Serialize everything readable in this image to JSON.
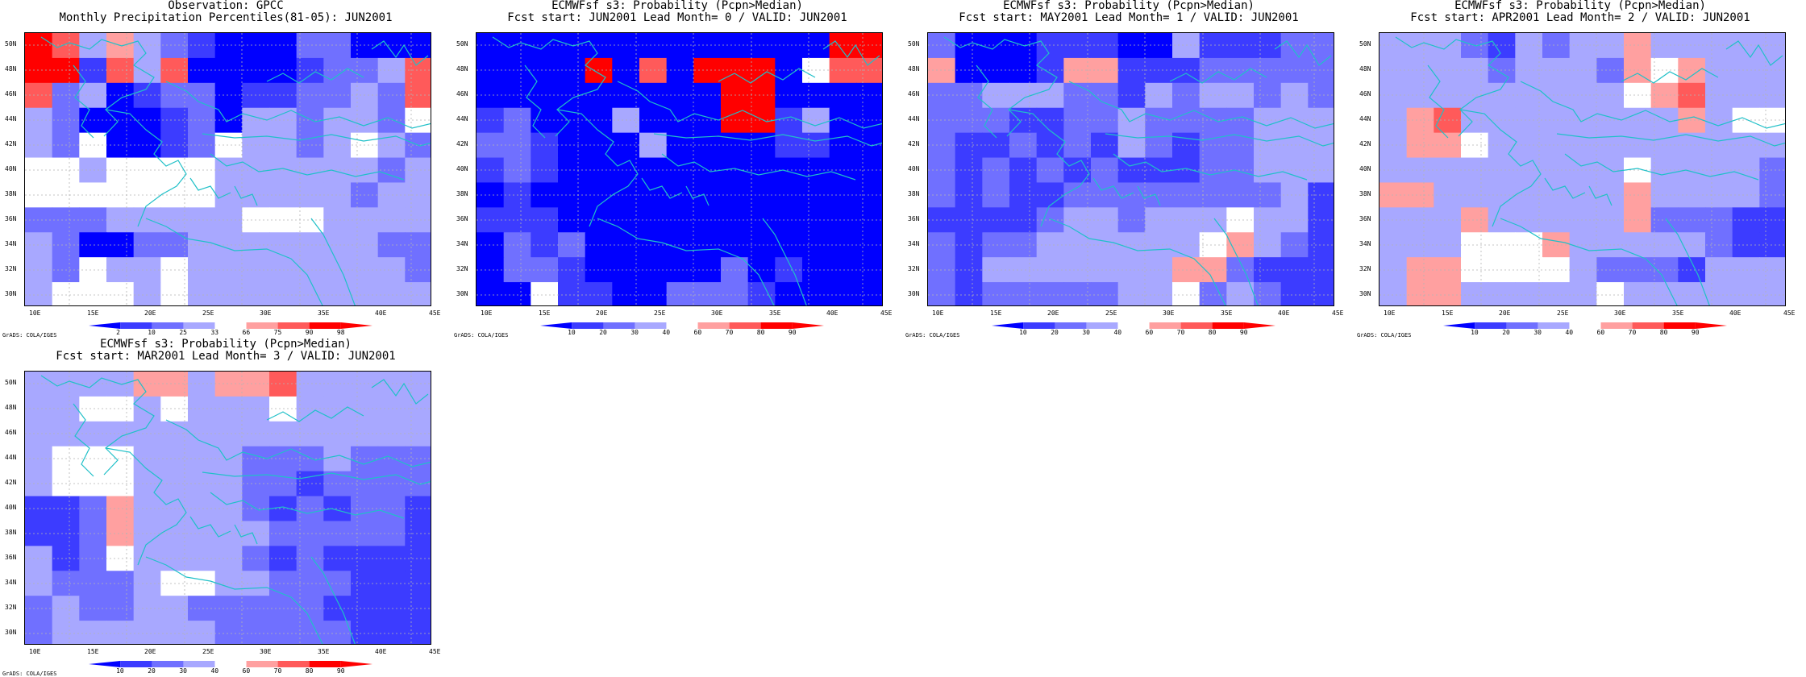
{
  "panels": [
    {
      "id": "obs",
      "title_line1": "Observation: GPCC",
      "title_line2": "Monthly Precipitation Percentiles(81-05): JUN2001",
      "colorbar_labels": [
        "2",
        "10",
        "25",
        "33",
        "66",
        "75",
        "90",
        "98"
      ],
      "grid_levels": [
        [
          7,
          6,
          3,
          5,
          3,
          2,
          1,
          0,
          0,
          0,
          2,
          2,
          0,
          0,
          0
        ],
        [
          7,
          7,
          1,
          6,
          3,
          6,
          0,
          0,
          0,
          0,
          1,
          2,
          2,
          3,
          6
        ],
        [
          6,
          2,
          3,
          0,
          1,
          2,
          2,
          0,
          1,
          1,
          2,
          2,
          3,
          2,
          6
        ],
        [
          3,
          2,
          0,
          0,
          0,
          1,
          2,
          0,
          3,
          3,
          2,
          3,
          3,
          2,
          4
        ],
        [
          3,
          2,
          4,
          0,
          0,
          1,
          2,
          4,
          3,
          3,
          2,
          3,
          4,
          3,
          2
        ],
        [
          4,
          4,
          3,
          4,
          4,
          4,
          4,
          3,
          3,
          3,
          3,
          3,
          3,
          2,
          3
        ],
        [
          4,
          4,
          4,
          4,
          4,
          4,
          4,
          3,
          3,
          3,
          3,
          3,
          2,
          3,
          3
        ],
        [
          2,
          2,
          2,
          3,
          3,
          3,
          3,
          3,
          4,
          4,
          4,
          3,
          3,
          3,
          3
        ],
        [
          3,
          2,
          0,
          0,
          2,
          2,
          3,
          3,
          3,
          3,
          3,
          3,
          3,
          2,
          2
        ],
        [
          3,
          2,
          4,
          3,
          3,
          4,
          3,
          3,
          3,
          3,
          3,
          3,
          3,
          3,
          2
        ],
        [
          3,
          4,
          4,
          4,
          3,
          4,
          3,
          3,
          3,
          3,
          3,
          3,
          3,
          3,
          3
        ]
      ]
    },
    {
      "id": "lead0",
      "title_line1": "ECMWFsf s3: Probability (Pcpn>Median)",
      "title_line2": "Fcst start: JUN2001   Lead Month= 0 / VALID: JUN2001",
      "colorbar_labels": [
        "10",
        "20",
        "30",
        "40",
        "60",
        "70",
        "80",
        "90"
      ],
      "grid_levels": [
        [
          0,
          0,
          0,
          0,
          0,
          0,
          0,
          0,
          0,
          0,
          0,
          0,
          0,
          7,
          7
        ],
        [
          0,
          0,
          0,
          0,
          7,
          0,
          6,
          0,
          7,
          7,
          7,
          0,
          4,
          6,
          6
        ],
        [
          0,
          0,
          0,
          0,
          0,
          0,
          0,
          0,
          0,
          7,
          7,
          0,
          0,
          0,
          0
        ],
        [
          1,
          2,
          0,
          0,
          0,
          3,
          0,
          0,
          0,
          7,
          7,
          1,
          3,
          0,
          0
        ],
        [
          2,
          2,
          1,
          0,
          0,
          0,
          3,
          0,
          0,
          0,
          0,
          1,
          1,
          0,
          0
        ],
        [
          1,
          2,
          1,
          0,
          0,
          0,
          0,
          0,
          0,
          0,
          0,
          0,
          0,
          0,
          0
        ],
        [
          0,
          1,
          0,
          0,
          0,
          0,
          0,
          0,
          0,
          0,
          0,
          0,
          0,
          0,
          0
        ],
        [
          1,
          1,
          1,
          0,
          0,
          0,
          0,
          0,
          0,
          0,
          0,
          0,
          0,
          0,
          0
        ],
        [
          0,
          2,
          1,
          2,
          0,
          0,
          0,
          0,
          0,
          0,
          0,
          0,
          0,
          0,
          0
        ],
        [
          0,
          2,
          2,
          1,
          0,
          0,
          0,
          0,
          0,
          2,
          0,
          1,
          0,
          0,
          0
        ],
        [
          0,
          0,
          4,
          1,
          1,
          0,
          0,
          2,
          2,
          2,
          1,
          0,
          0,
          0,
          0
        ]
      ]
    },
    {
      "id": "lead1",
      "title_line1": "ECMWFsf s3: Probability (Pcpn>Median)",
      "title_line2": "Fcst start: MAY2001   Lead Month= 1 / VALID: JUN2001",
      "colorbar_labels": [
        "10",
        "20",
        "30",
        "40",
        "60",
        "70",
        "80",
        "90"
      ],
      "grid_levels": [
        [
          2,
          0,
          0,
          0,
          1,
          1,
          1,
          0,
          0,
          3,
          1,
          1,
          1,
          2,
          2
        ],
        [
          5,
          0,
          0,
          0,
          1,
          5,
          5,
          1,
          1,
          1,
          2,
          2,
          2,
          2,
          2
        ],
        [
          2,
          2,
          3,
          3,
          3,
          2,
          2,
          1,
          3,
          2,
          3,
          3,
          2,
          3,
          2
        ],
        [
          2,
          2,
          2,
          1,
          1,
          2,
          2,
          3,
          2,
          2,
          2,
          2,
          3,
          3,
          3
        ],
        [
          2,
          1,
          1,
          2,
          1,
          2,
          1,
          3,
          2,
          1,
          2,
          2,
          3,
          3,
          3
        ],
        [
          2,
          1,
          2,
          1,
          2,
          1,
          2,
          1,
          1,
          1,
          2,
          2,
          3,
          3,
          3
        ],
        [
          2,
          1,
          2,
          1,
          1,
          2,
          2,
          2,
          2,
          2,
          2,
          2,
          2,
          3,
          1
        ],
        [
          1,
          1,
          1,
          1,
          2,
          3,
          3,
          2,
          3,
          3,
          3,
          4,
          3,
          3,
          1
        ],
        [
          2,
          1,
          2,
          2,
          3,
          3,
          3,
          3,
          3,
          3,
          4,
          5,
          3,
          2,
          1
        ],
        [
          2,
          1,
          3,
          3,
          3,
          3,
          3,
          3,
          3,
          5,
          5,
          2,
          1,
          1,
          1
        ],
        [
          2,
          1,
          2,
          2,
          2,
          2,
          2,
          3,
          3,
          4,
          2,
          3,
          2,
          1,
          1
        ]
      ]
    },
    {
      "id": "lead2",
      "title_line1": "ECMWFsf s3: Probability (Pcpn>Median)",
      "title_line2": "Fcst start: APR2001   Lead Month= 2 / VALID: JUN2001",
      "colorbar_labels": [
        "10",
        "20",
        "30",
        "40",
        "60",
        "70",
        "80",
        "90"
      ],
      "grid_levels": [
        [
          3,
          3,
          3,
          2,
          1,
          3,
          2,
          3,
          3,
          5,
          3,
          3,
          3,
          3,
          3
        ],
        [
          3,
          3,
          3,
          3,
          2,
          3,
          3,
          3,
          2,
          5,
          4,
          5,
          3,
          3,
          3
        ],
        [
          3,
          3,
          3,
          3,
          3,
          3,
          3,
          3,
          3,
          4,
          5,
          6,
          3,
          3,
          3
        ],
        [
          3,
          5,
          6,
          3,
          3,
          3,
          3,
          3,
          3,
          3,
          3,
          5,
          3,
          4,
          4
        ],
        [
          3,
          5,
          5,
          4,
          3,
          3,
          3,
          3,
          3,
          3,
          3,
          3,
          3,
          3,
          3
        ],
        [
          3,
          3,
          3,
          3,
          3,
          3,
          3,
          3,
          3,
          4,
          3,
          3,
          3,
          3,
          2
        ],
        [
          5,
          5,
          3,
          3,
          3,
          3,
          3,
          3,
          3,
          5,
          3,
          3,
          3,
          3,
          2
        ],
        [
          3,
          3,
          3,
          5,
          3,
          3,
          3,
          3,
          3,
          5,
          2,
          2,
          2,
          1,
          1
        ],
        [
          3,
          3,
          3,
          4,
          4,
          4,
          5,
          3,
          3,
          3,
          3,
          3,
          2,
          1,
          1
        ],
        [
          3,
          5,
          5,
          4,
          4,
          4,
          4,
          3,
          2,
          2,
          2,
          1,
          3,
          3,
          3
        ],
        [
          3,
          5,
          5,
          3,
          3,
          3,
          3,
          3,
          4,
          3,
          3,
          3,
          3,
          3,
          3
        ]
      ]
    },
    {
      "id": "lead3",
      "title_line1": "ECMWFsf s3: Probability (Pcpn>Median)",
      "title_line2": "Fcst start: MAR2001   Lead Month= 3 / VALID: JUN2001",
      "colorbar_labels": [
        "10",
        "20",
        "30",
        "40",
        "60",
        "70",
        "80",
        "90"
      ],
      "grid_levels": [
        [
          3,
          3,
          3,
          3,
          5,
          5,
          3,
          5,
          5,
          6,
          3,
          3,
          3,
          3,
          3
        ],
        [
          3,
          3,
          4,
          4,
          3,
          4,
          3,
          3,
          3,
          4,
          3,
          3,
          3,
          3,
          3
        ],
        [
          3,
          3,
          3,
          3,
          3,
          3,
          3,
          3,
          3,
          3,
          3,
          3,
          3,
          3,
          3
        ],
        [
          3,
          4,
          4,
          4,
          3,
          3,
          3,
          3,
          2,
          2,
          2,
          3,
          2,
          2,
          2
        ],
        [
          3,
          4,
          4,
          4,
          3,
          3,
          3,
          3,
          2,
          2,
          1,
          2,
          2,
          2,
          2
        ],
        [
          1,
          1,
          2,
          5,
          3,
          3,
          3,
          3,
          2,
          1,
          2,
          1,
          2,
          2,
          1
        ],
        [
          1,
          1,
          2,
          5,
          3,
          3,
          3,
          3,
          3,
          2,
          2,
          2,
          2,
          2,
          1
        ],
        [
          3,
          1,
          2,
          4,
          3,
          3,
          3,
          3,
          2,
          1,
          2,
          1,
          1,
          1,
          1
        ],
        [
          3,
          2,
          2,
          2,
          3,
          4,
          4,
          3,
          3,
          2,
          2,
          2,
          1,
          1,
          1
        ],
        [
          2,
          3,
          2,
          2,
          3,
          3,
          2,
          2,
          2,
          2,
          2,
          1,
          1,
          1,
          1
        ],
        [
          2,
          3,
          3,
          3,
          3,
          3,
          3,
          2,
          2,
          2,
          2,
          2,
          1,
          1,
          1
        ]
      ]
    }
  ],
  "axes": {
    "x_ticks": [
      "10E",
      "15E",
      "20E",
      "25E",
      "30E",
      "35E",
      "40E",
      "45E"
    ],
    "y_ticks": [
      "50N",
      "48N",
      "46N",
      "44N",
      "42N",
      "40N",
      "38N",
      "36N",
      "34N",
      "32N",
      "30N"
    ]
  },
  "palette": [
    "#0000ff",
    "#3c3cff",
    "#7070ff",
    "#a8a8ff",
    "#ffffff",
    "#ffa0a0",
    "#ff5a5a",
    "#ff0000"
  ],
  "map_style": {
    "coastline_color": "#20c0c8",
    "grid_color": "#b4b4b4"
  },
  "credit": "GrADS: COLA/IGES"
}
